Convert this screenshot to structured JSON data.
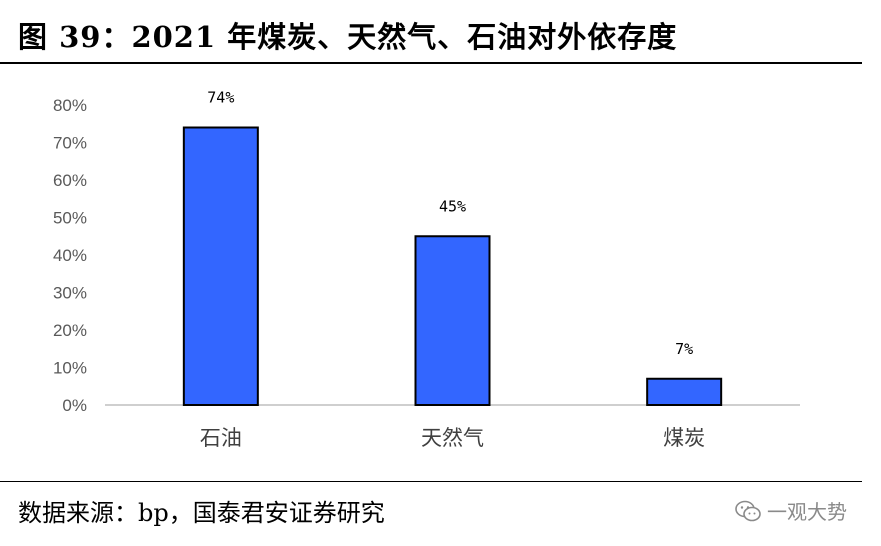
{
  "header": {
    "title": "图 39：2021 年煤炭、天然气、石油对外依存度"
  },
  "footer": {
    "source": "数据来源：bp，国泰君安证券研究",
    "watermark_text": "一观大势",
    "watermark_icon": "wechat-icon"
  },
  "chart_data": {
    "type": "bar",
    "categories": [
      "石油",
      "天然气",
      "煤炭"
    ],
    "values": [
      0.74,
      0.45,
      0.07
    ],
    "data_labels": [
      "74%",
      "45%",
      "7%"
    ],
    "ylim": [
      0,
      0.8
    ],
    "yticks": [
      0,
      0.1,
      0.2,
      0.3,
      0.4,
      0.5,
      0.6,
      0.7,
      0.8
    ],
    "ytick_labels": [
      "0%",
      "10%",
      "20%",
      "30%",
      "40%",
      "50%",
      "60%",
      "70%",
      "80%"
    ],
    "grid": false,
    "bar_color": "#3366ff",
    "bar_edge_color": "#000000"
  }
}
